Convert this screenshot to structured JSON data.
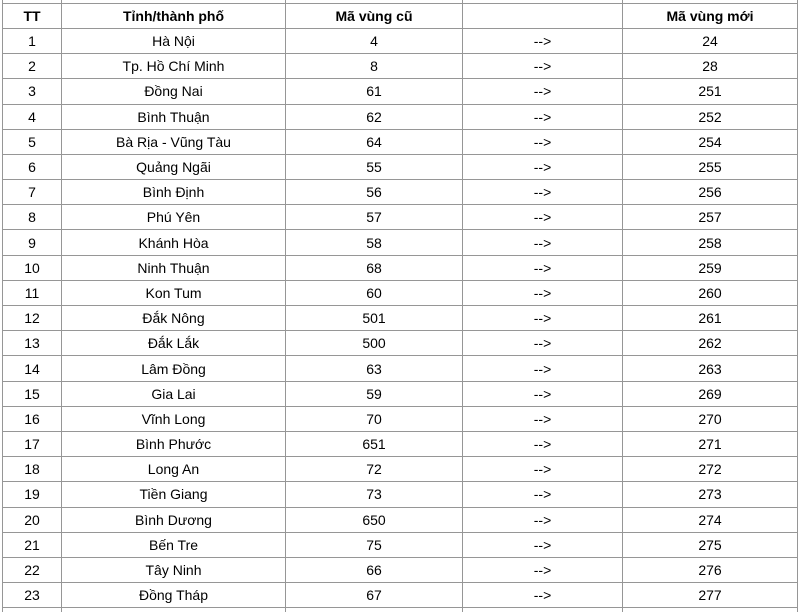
{
  "table": {
    "headers": [
      "TT",
      "Tỉnh/thành phố",
      "Mã vùng cũ",
      "",
      "Mã vùng mới"
    ],
    "arrow": "-->",
    "rows": [
      {
        "tt": "1",
        "province": "Hà Nội",
        "old": "4",
        "new": "24"
      },
      {
        "tt": "2",
        "province": "Tp. Hồ Chí Minh",
        "old": "8",
        "new": "28"
      },
      {
        "tt": "3",
        "province": "Đồng Nai",
        "old": "61",
        "new": "251"
      },
      {
        "tt": "4",
        "province": "Bình Thuận",
        "old": "62",
        "new": "252"
      },
      {
        "tt": "5",
        "province": "Bà Rịa - Vũng Tàu",
        "old": "64",
        "new": "254"
      },
      {
        "tt": "6",
        "province": "Quảng Ngãi",
        "old": "55",
        "new": "255"
      },
      {
        "tt": "7",
        "province": "Bình Định",
        "old": "56",
        "new": "256"
      },
      {
        "tt": "8",
        "province": "Phú Yên",
        "old": "57",
        "new": "257"
      },
      {
        "tt": "9",
        "province": "Khánh Hòa",
        "old": "58",
        "new": "258"
      },
      {
        "tt": "10",
        "province": "Ninh Thuận",
        "old": "68",
        "new": "259"
      },
      {
        "tt": "11",
        "province": "Kon Tum",
        "old": "60",
        "new": "260"
      },
      {
        "tt": "12",
        "province": "Đắk Nông",
        "old": "501",
        "new": "261"
      },
      {
        "tt": "13",
        "province": "Đắk Lắk",
        "old": "500",
        "new": "262"
      },
      {
        "tt": "14",
        "province": "Lâm Đồng",
        "old": "63",
        "new": "263"
      },
      {
        "tt": "15",
        "province": "Gia Lai",
        "old": "59",
        "new": "269"
      },
      {
        "tt": "16",
        "province": "Vĩnh Long",
        "old": "70",
        "new": "270"
      },
      {
        "tt": "17",
        "province": "Bình Phước",
        "old": "651",
        "new": "271"
      },
      {
        "tt": "18",
        "province": "Long An",
        "old": "72",
        "new": "272"
      },
      {
        "tt": "19",
        "province": "Tiền Giang",
        "old": "73",
        "new": "273"
      },
      {
        "tt": "20",
        "province": "Bình Dương",
        "old": "650",
        "new": "274"
      },
      {
        "tt": "21",
        "province": "Bến Tre",
        "old": "75",
        "new": "275"
      },
      {
        "tt": "22",
        "province": "Tây Ninh",
        "old": "66",
        "new": "276"
      },
      {
        "tt": "23",
        "province": "Đồng Tháp",
        "old": "67",
        "new": "277"
      }
    ]
  },
  "colors": {
    "border": "#969696",
    "text": "#000000",
    "background": "#ffffff"
  }
}
